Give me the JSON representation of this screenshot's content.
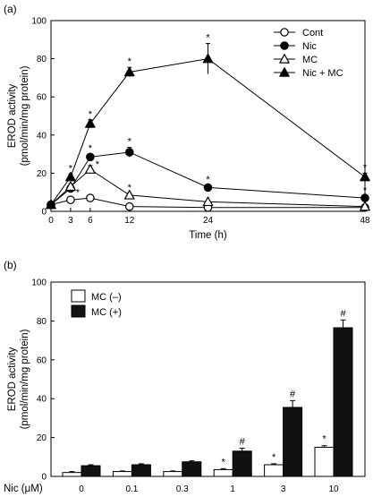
{
  "chart_data": [
    {
      "panel_label": "(a)",
      "type": "line",
      "xlabel": "Time (h)",
      "ylabel": [
        "EROD activity",
        "(pmol/min/mg protein)"
      ],
      "xlim": [
        0,
        48
      ],
      "ylim": [
        0,
        100
      ],
      "x_ticks": [
        0,
        3,
        6,
        12,
        24,
        48
      ],
      "y_ticks": [
        0,
        20,
        40,
        60,
        80,
        100
      ],
      "legend_position": "top-right",
      "series": [
        {
          "name": "Cont",
          "marker": "circle-open",
          "x": [
            0,
            3,
            6,
            12,
            24,
            48
          ],
          "y": [
            3.5,
            6,
            7,
            2.5,
            2,
            2
          ],
          "err": [
            0,
            0.5,
            0.5,
            0.5,
            0.3,
            0.3
          ],
          "sig": [
            false,
            false,
            false,
            false,
            false,
            false
          ]
        },
        {
          "name": "Nic",
          "marker": "circle-filled",
          "x": [
            0,
            3,
            6,
            12,
            24,
            48
          ],
          "y": [
            3.5,
            12,
            28.5,
            31,
            12.5,
            7
          ],
          "err": [
            0,
            1.5,
            1.5,
            2.5,
            1,
            1
          ],
          "sig": [
            false,
            true,
            true,
            true,
            true,
            true
          ]
        },
        {
          "name": "MC",
          "marker": "triangle-open",
          "x": [
            0,
            3,
            6,
            12,
            24,
            48
          ],
          "y": [
            3.5,
            13,
            22,
            8.5,
            5,
            2.5
          ],
          "err": [
            0,
            1.5,
            2,
            1,
            0.5,
            0.5
          ],
          "sig": [
            false,
            true,
            true,
            true,
            false,
            false
          ]
        },
        {
          "name": "Nic + MC",
          "marker": "triangle-filled",
          "x": [
            0,
            3,
            6,
            12,
            24,
            48
          ],
          "y": [
            3.5,
            18,
            46,
            73,
            80,
            18
          ],
          "err": [
            0,
            1.5,
            2,
            2.5,
            8,
            2
          ],
          "sig": [
            false,
            true,
            true,
            true,
            true,
            true
          ]
        }
      ]
    },
    {
      "panel_label": "(b)",
      "type": "bar",
      "ylabel": [
        "EROD activity",
        "(pmol/min/mg protein)"
      ],
      "row_label": "Nic (μM)",
      "categories": [
        "0",
        "0.1",
        "0.3",
        "1",
        "3",
        "10"
      ],
      "ylim": [
        0,
        100
      ],
      "y_ticks": [
        0,
        20,
        40,
        60,
        80,
        100
      ],
      "legend_position": "top-left",
      "series": [
        {
          "name": "MC (–)",
          "fill": "#ffffff",
          "values": [
            2,
            2.5,
            2.5,
            3.5,
            6,
            15
          ],
          "err": [
            0.5,
            0.3,
            0.3,
            0.5,
            0.5,
            0.8
          ],
          "marks": [
            "",
            "",
            "",
            "*",
            "*",
            "*"
          ]
        },
        {
          "name": "MC (+)",
          "fill": "#111111",
          "values": [
            5.5,
            6,
            7.5,
            13,
            35.5,
            76.5
          ],
          "err": [
            0.5,
            0.5,
            0.5,
            1.5,
            3.5,
            4
          ],
          "marks": [
            "",
            "",
            "",
            "#",
            "#",
            "#"
          ]
        }
      ]
    }
  ]
}
